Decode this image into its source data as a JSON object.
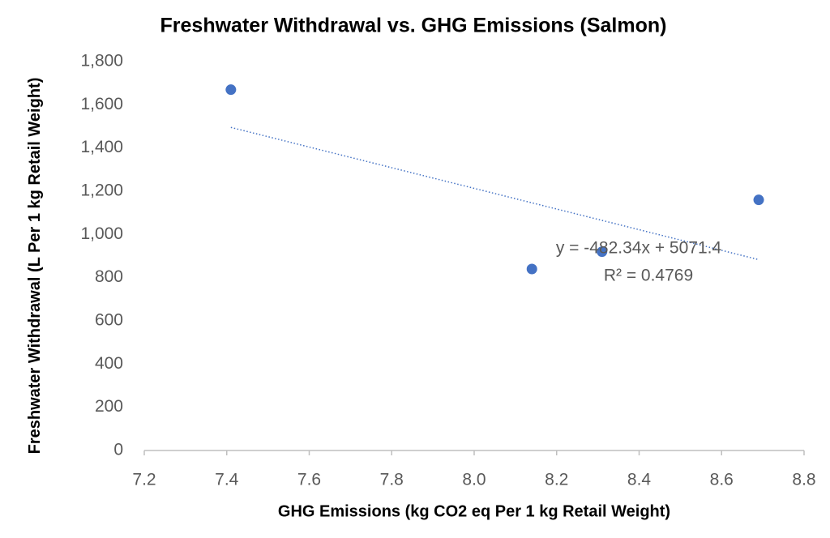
{
  "chart_data": {
    "type": "scatter",
    "title": "Freshwater Withdrawal vs. GHG Emissions (Salmon)",
    "x_label": "GHG Emissions (kg CO2 eq Per 1 kg Retail Weight)",
    "y_label": "Freshwater Withdrawal (L Per 1 kg Retail Weight)",
    "series": [
      {
        "name": "Salmon",
        "color": "#4472c4",
        "x": [
          7.41,
          8.14,
          8.31,
          8.69
        ],
        "values": [
          1670,
          840,
          920,
          1160
        ]
      }
    ],
    "trendline": {
      "type": "linear",
      "color": "#4472c4",
      "equation": "y = -482.34x + 5071.4",
      "r_squared": "R² = 0.4769"
    },
    "xlim": [
      7.2,
      8.8
    ],
    "xticks": [
      7.2,
      7.4,
      7.6,
      7.8,
      {
        "value": 8,
        "label": "8.0"
      },
      8.2,
      8.4,
      8.6,
      8.8
    ],
    "ylim": [
      0,
      1800
    ],
    "yticks": [
      0,
      200,
      400,
      600,
      800,
      {
        "value": 1000,
        "label": "1,000"
      },
      {
        "value": 1200,
        "label": "1,200"
      },
      {
        "value": 1400,
        "label": "1,400"
      },
      {
        "value": 1600,
        "label": "1,600"
      },
      {
        "value": 1800,
        "label": "1,800"
      }
    ],
    "grid": false
  }
}
